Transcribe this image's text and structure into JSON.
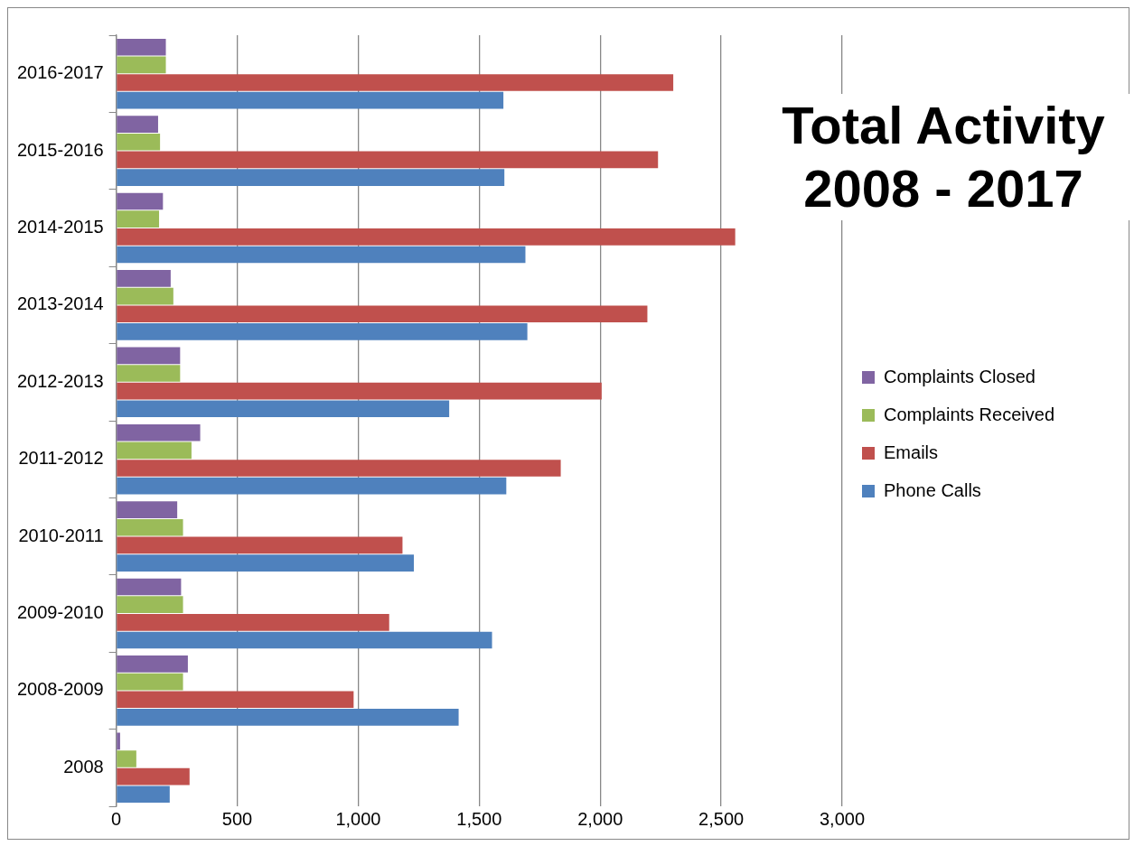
{
  "chart_data": {
    "type": "bar",
    "orientation": "horizontal",
    "title": "Total Activity 2008 - 2017",
    "categories": [
      "2016-2017",
      "2015-2016",
      "2014-2015",
      "2013-2014",
      "2012-2013",
      "2011-2012",
      "2010-2011",
      "2009-2010",
      "2008-2009",
      "2008"
    ],
    "series": [
      {
        "name": "Complaints Closed",
        "color": "#8064a2",
        "values": [
          205,
          173,
          193,
          225,
          264,
          347,
          252,
          268,
          296,
          16
        ]
      },
      {
        "name": "Complaints Received",
        "color": "#9bbb59",
        "values": [
          205,
          181,
          177,
          236,
          264,
          311,
          276,
          276,
          276,
          83
        ]
      },
      {
        "name": "Emails",
        "color": "#c0504d",
        "values": [
          2302,
          2239,
          2558,
          2195,
          2006,
          1837,
          1183,
          1128,
          981,
          303
        ]
      },
      {
        "name": "Phone Calls",
        "color": "#4f81bd",
        "values": [
          1600,
          1604,
          1691,
          1699,
          1376,
          1612,
          1230,
          1553,
          1415,
          221
        ]
      }
    ],
    "xlim": [
      0,
      3000
    ],
    "xticks": [
      0,
      500,
      {
        "value": 1000,
        "label": "1,000"
      },
      {
        "value": 1500,
        "label": "1,500"
      },
      {
        "value": 2000,
        "label": "2,000"
      },
      {
        "value": 2500,
        "label": "2,500"
      },
      {
        "value": 3000,
        "label": "3,000"
      }
    ],
    "grid": "x",
    "legend": "right"
  }
}
